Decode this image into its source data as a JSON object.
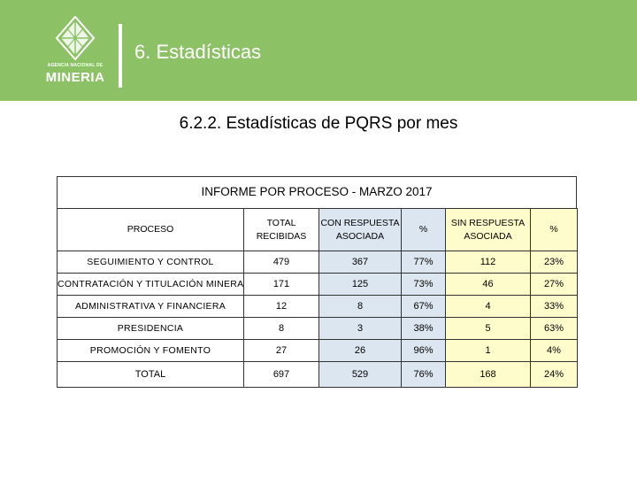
{
  "header": {
    "title": "6. Estadísticas",
    "logo_agency": "AGENCIA NACIONAL DE",
    "logo_name": "MINERIA"
  },
  "subtitle": "6.2.2. Estadísticas de PQRS por mes",
  "report": {
    "title": "INFORME POR PROCESO - MARZO 2017",
    "columns": {
      "proceso": "PROCESO",
      "total": "TOTAL RECIBIDAS",
      "con_respuesta": "CON RESPUESTA ASOCIADA",
      "pct1": "%",
      "sin_respuesta": "SIN RESPUESTA ASOCIADA",
      "pct2": "%"
    },
    "rows": [
      {
        "proceso": "SEGUIMIENTO Y CONTROL",
        "total": "479",
        "con": "367",
        "pct_con": "77%",
        "sin": "112",
        "pct_sin": "23%"
      },
      {
        "proceso": "CONTRATACIÓN Y TITULACIÓN MINERA",
        "total": "171",
        "con": "125",
        "pct_con": "73%",
        "sin": "46",
        "pct_sin": "27%"
      },
      {
        "proceso": "ADMINISTRATIVA Y FINANCIERA",
        "total": "12",
        "con": "8",
        "pct_con": "67%",
        "sin": "4",
        "pct_sin": "33%"
      },
      {
        "proceso": "PRESIDENCIA",
        "total": "8",
        "con": "3",
        "pct_con": "38%",
        "sin": "5",
        "pct_sin": "63%"
      },
      {
        "proceso": "PROMOCIÓN Y FOMENTO",
        "total": "27",
        "con": "26",
        "pct_con": "96%",
        "sin": "1",
        "pct_sin": "4%"
      }
    ],
    "total_row": {
      "proceso": "TOTAL",
      "total": "697",
      "con": "529",
      "pct_con": "76%",
      "sin": "168",
      "pct_sin": "24%"
    }
  },
  "colors": {
    "header_band": "#8cc265",
    "con_respuesta_fill": "#dce6f1",
    "sin_respuesta_fill": "#fffccc"
  }
}
